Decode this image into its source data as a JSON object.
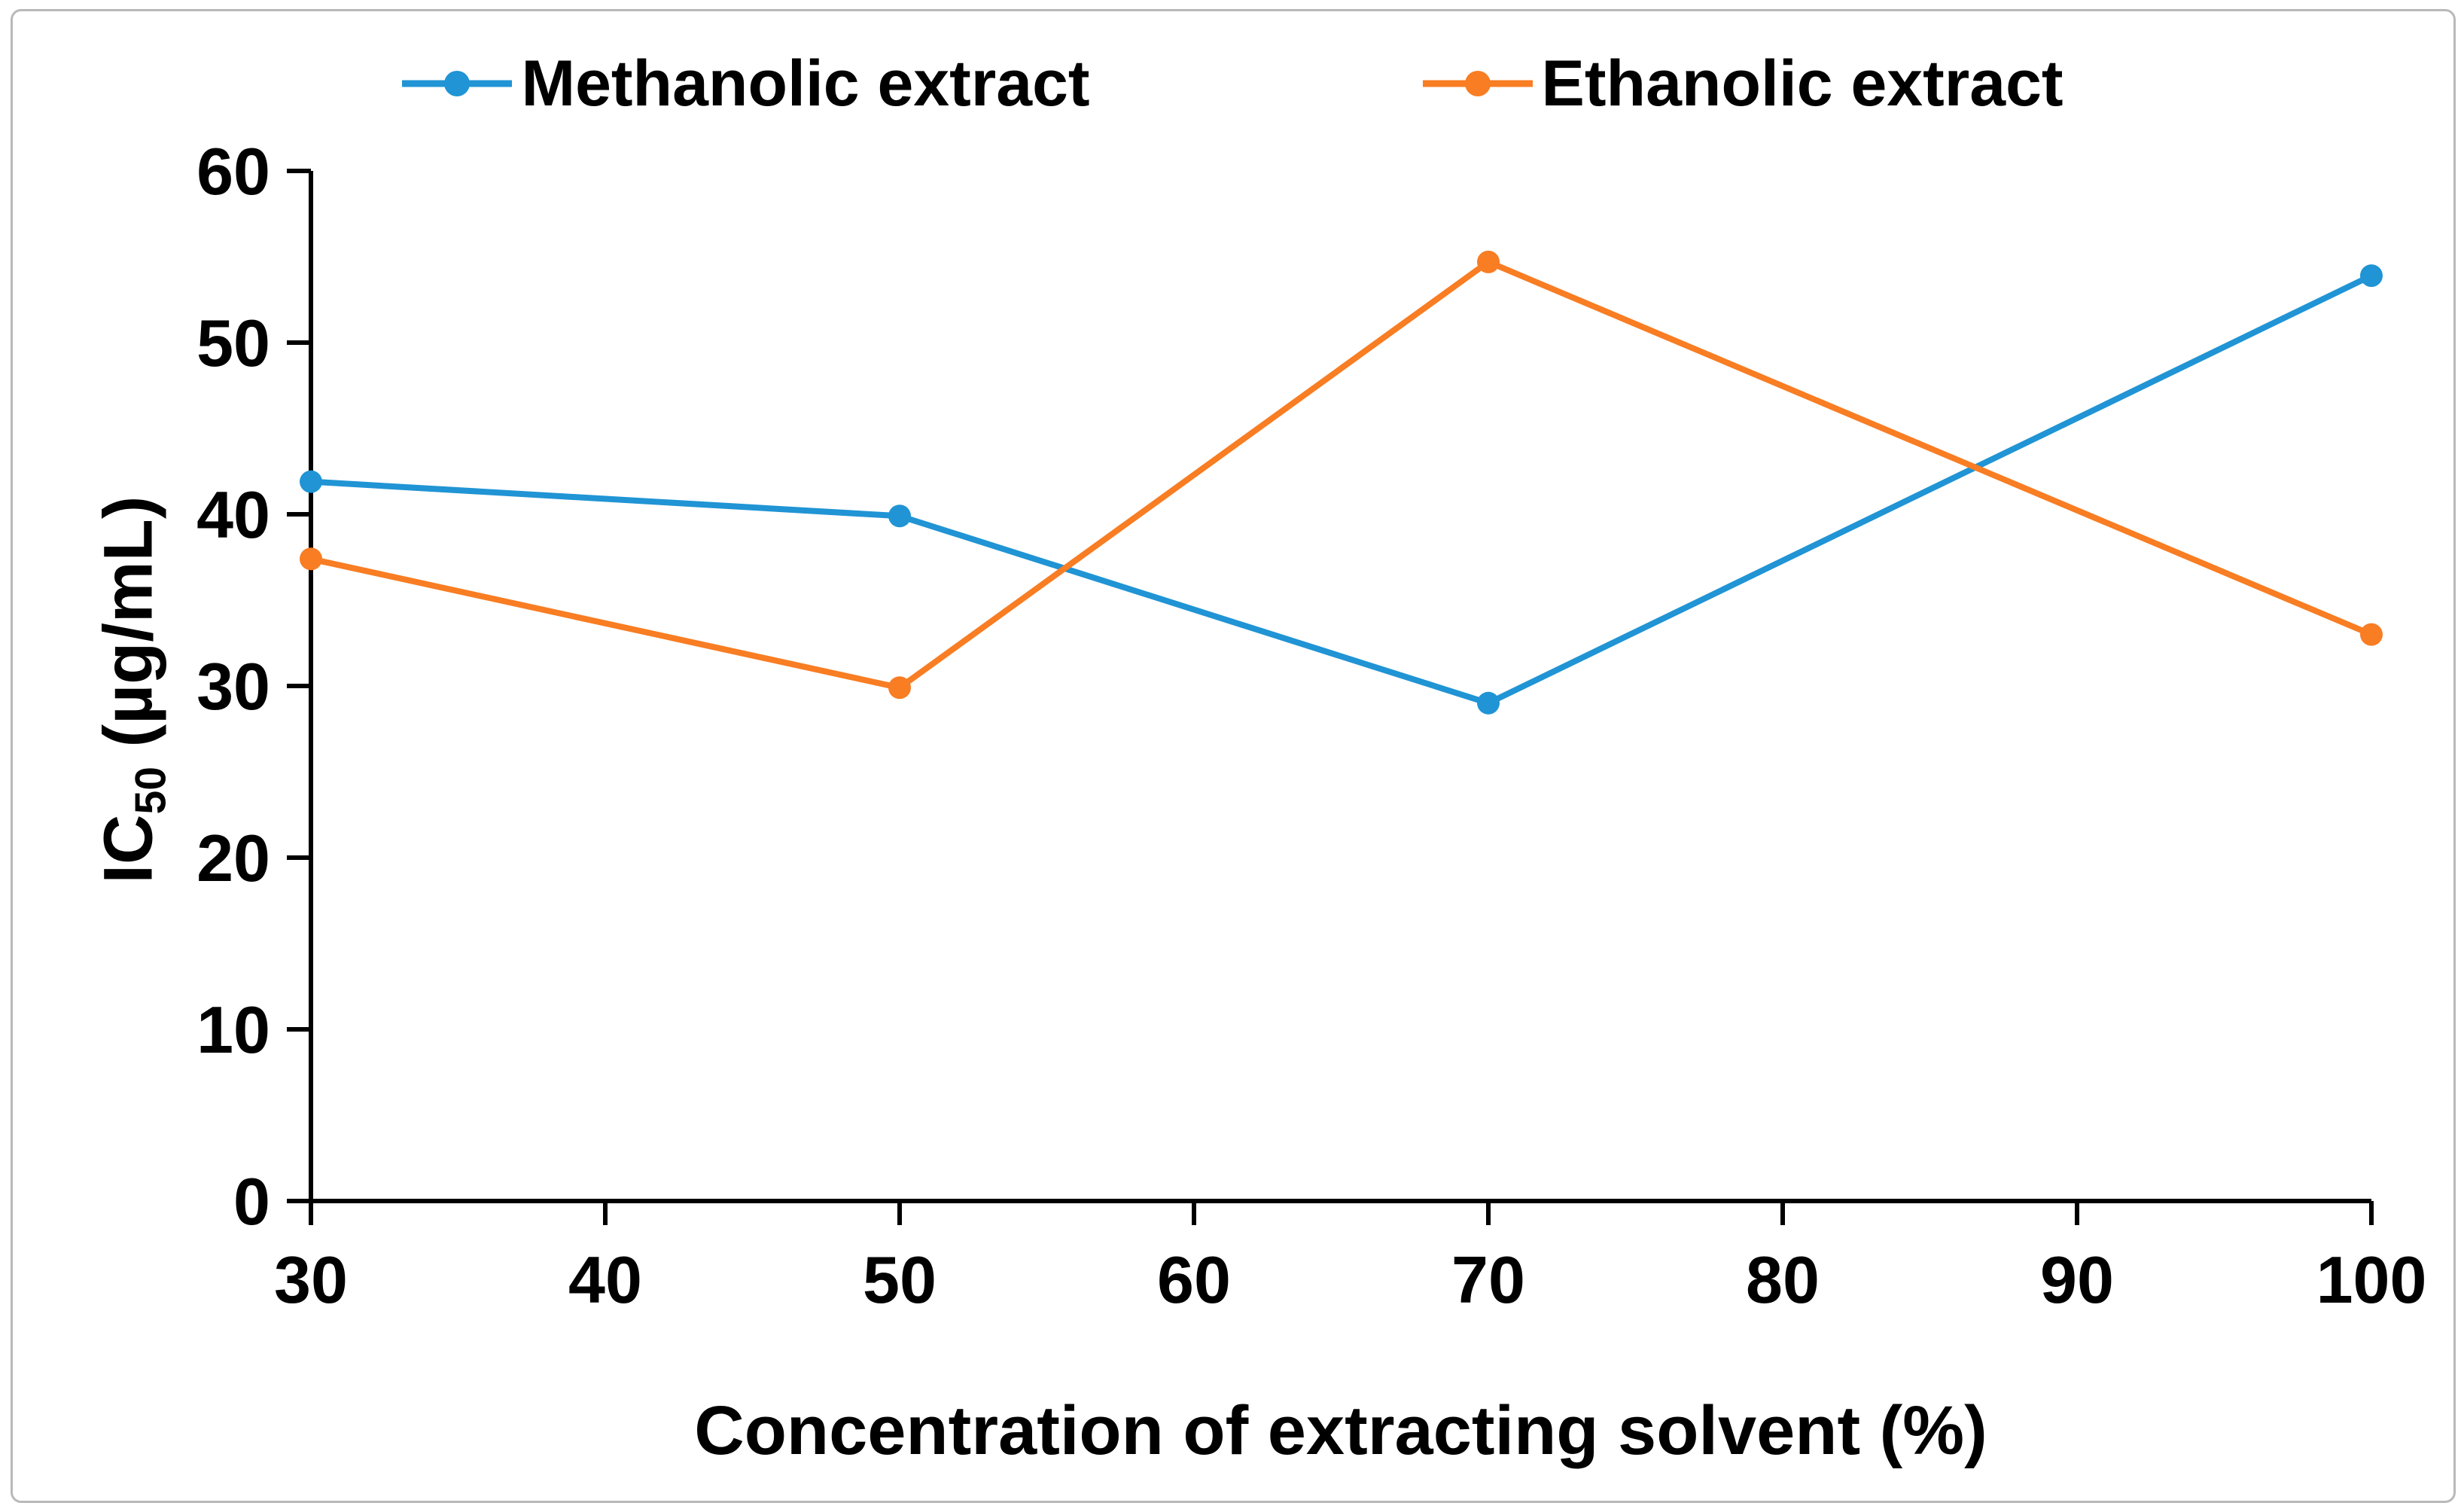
{
  "chart_data": {
    "type": "line",
    "x": [
      30,
      50,
      70,
      100
    ],
    "xticks": [
      30,
      40,
      50,
      60,
      70,
      80,
      90,
      100
    ],
    "yticks": [
      0,
      10,
      20,
      30,
      40,
      50,
      60
    ],
    "xlim": [
      30,
      100
    ],
    "ylim": [
      0,
      60
    ],
    "grid": false,
    "legend_position": "top-center",
    "xlabel": "Concentration of extracting solvent (%)",
    "ylabel_prefix": "IC",
    "ylabel_sub": "50",
    "ylabel_suffix": " (µg/mL)",
    "series": [
      {
        "name": "Methanolic extract",
        "color": "#2094D4",
        "values": [
          41.9,
          39.9,
          29.0,
          53.9
        ]
      },
      {
        "name": "Ethanolic extract",
        "color": "#F87D23",
        "values": [
          37.4,
          29.9,
          54.7,
          33.0
        ]
      }
    ],
    "colors": {
      "axis": "#000000",
      "text": "#000000",
      "figure_border": "#B9B9B9"
    }
  }
}
